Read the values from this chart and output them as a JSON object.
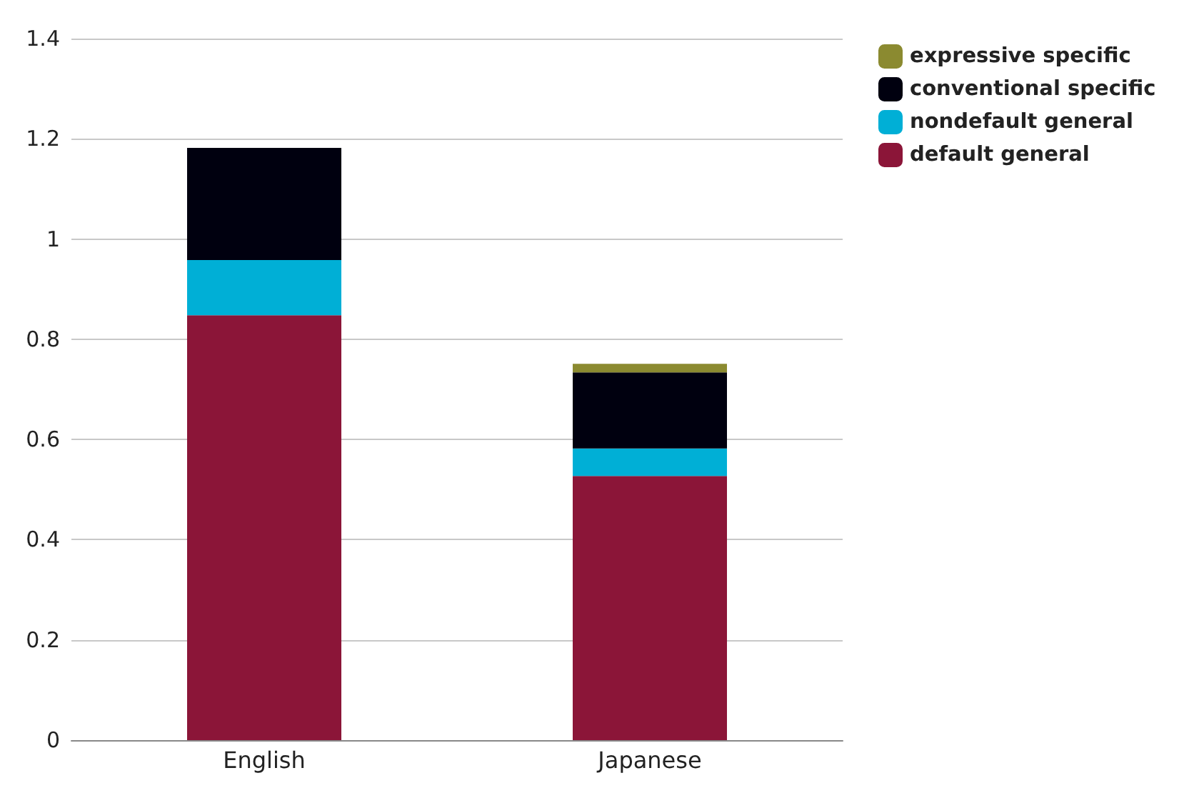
{
  "chart_data": {
    "type": "bar",
    "stacked": true,
    "categories": [
      "English",
      "Japanese"
    ],
    "series": [
      {
        "name": "default general",
        "color": "#8b1538",
        "values": [
          0.848,
          0.527
        ]
      },
      {
        "name": "nondefault general",
        "color": "#00afd6",
        "values": [
          0.11,
          0.055
        ]
      },
      {
        "name": "conventional specific",
        "color": "#00000f",
        "values": [
          0.224,
          0.152
        ]
      },
      {
        "name": "expressive specific",
        "color": "#8b8a30",
        "values": [
          0,
          0.017
        ]
      }
    ],
    "ylim": [
      0,
      1.4
    ],
    "yticks": [
      0,
      0.2,
      0.4,
      0.6,
      0.8,
      1,
      1.2,
      1.4
    ],
    "grid": "y",
    "legend": "top right"
  }
}
